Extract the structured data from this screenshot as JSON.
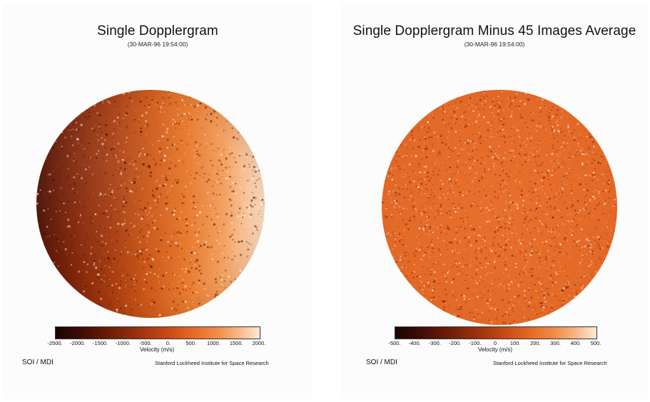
{
  "panels": [
    {
      "title": "Single Dopplergram",
      "subtitle": "(30-MAR-96  19:54:00)",
      "colorbar": {
        "ticks": [
          "-2500.",
          "-2000.",
          "-1500.",
          "-1000.",
          "-500.",
          "0.",
          "500.",
          "1000.",
          "1500.",
          "2000."
        ],
        "tick_values": [
          -2500,
          -2000,
          -1500,
          -1000,
          -500,
          0,
          500,
          1000,
          1500,
          2000
        ],
        "range": [
          -2500,
          2000
        ],
        "label": "Velocity (m/s)"
      },
      "footer_left": "SOI / MDI",
      "footer_right": "Stanford Lockheed Institute for Space Research"
    },
    {
      "title": "Single Dopplergram Minus 45 Images Average",
      "subtitle": "(30-MAR-96  19:54:00)",
      "colorbar": {
        "ticks": [
          "-500.",
          "-400.",
          "-300.",
          "-200.",
          "-100.",
          "0",
          "100.",
          "200.",
          "300.",
          "400.",
          "500."
        ],
        "tick_values": [
          -500,
          -400,
          -300,
          -200,
          -100,
          0,
          100,
          200,
          300,
          400,
          500
        ],
        "range": [
          -500,
          500
        ],
        "label": "Velocity (m/s)"
      },
      "footer_left": "SOI / MDI",
      "footer_right": "Stanford Lockheed Institute for Space Research"
    }
  ],
  "colors": {
    "cmap_dark": "#1a0503",
    "cmap_mid": "#c84a16",
    "cmap_light": "#fde9d7",
    "background": "#ffffff"
  }
}
